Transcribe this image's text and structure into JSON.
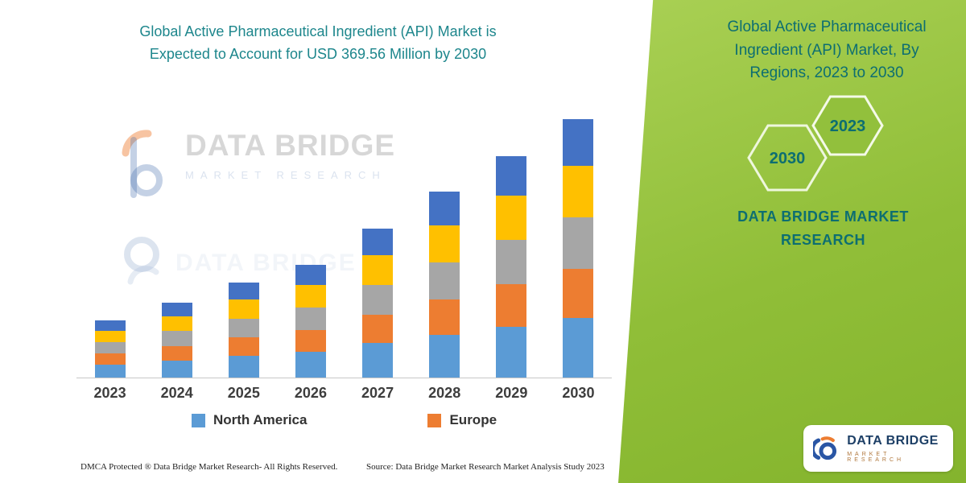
{
  "left_panel": {
    "title_line1": "Global Active Pharmaceutical Ingredient (API) Market is",
    "title_line2": "Expected to Account for USD 369.56 Million by 2030",
    "title_color": "#1d868c",
    "footer_left": "DMCA Protected ® Data Bridge Market Research-  All Rights Reserved.",
    "footer_right": "Source: Data Bridge Market Research  Market Analysis Study 2023"
  },
  "watermark": {
    "line1": "DATA BRIDGE",
    "line2": "MARKET RESEARCH"
  },
  "chart_data": {
    "type": "bar",
    "stacked": true,
    "title": "Global Active Pharmaceutical Ingredient (API) Market, By Regions, 2023 to 2030",
    "unit": "USD Million",
    "annotation": "Total expected to account for USD 369.56 Million by 2030",
    "categories": [
      "2023",
      "2024",
      "2025",
      "2026",
      "2027",
      "2028",
      "2029",
      "2030"
    ],
    "series": [
      {
        "key": "north-america",
        "name": "North America",
        "color": "#5B9BD5",
        "in_legend": true,
        "values": [
          18.9,
          24.6,
          31.3,
          37.0,
          49.0,
          61.2,
          72.9,
          85.0
        ]
      },
      {
        "key": "europe",
        "name": "Europe",
        "color": "#ED7D31",
        "in_legend": true,
        "values": [
          15.6,
          20.3,
          25.8,
          30.6,
          40.5,
          50.5,
          60.2,
          70.2
        ]
      },
      {
        "key": "segment-gray",
        "name": "",
        "color": "#A6A6A6",
        "in_legend": false,
        "values": [
          16.4,
          21.4,
          27.2,
          32.2,
          42.6,
          53.2,
          63.4,
          73.9
        ]
      },
      {
        "key": "segment-yellow",
        "name": "",
        "color": "#FFC000",
        "in_legend": false,
        "values": [
          16.4,
          21.4,
          27.2,
          32.2,
          42.6,
          53.2,
          63.4,
          73.9
        ]
      },
      {
        "key": "segment-dark-blue",
        "name": "",
        "color": "#4472C4",
        "in_legend": false,
        "values": [
          14.7,
          19.3,
          24.5,
          29.0,
          38.3,
          47.9,
          57.1,
          66.6
        ]
      }
    ],
    "totals": [
      82.0,
      107.0,
      136.0,
      161.0,
      213.0,
      266.0,
      317.0,
      369.56
    ],
    "ylim": [
      0,
      380
    ],
    "grid": false,
    "axis_line_color": "#c8c8c8",
    "legend_position": "bottom",
    "legend_visible_entries": [
      "North America",
      "Europe"
    ]
  },
  "right_panel": {
    "background_color": "#90be38",
    "text_color": "#0d6e71",
    "title": "Global Active Pharmaceutical Ingredient (API) Market, By Regions, 2023 to 2030",
    "hexagon_back_year": "2030",
    "hexagon_front_year": "2023",
    "brand_text": "DATA BRIDGE MARKET RESEARCH"
  },
  "logo_badge": {
    "name": "DATA BRIDGE",
    "subtext": "MARKET RESEARCH"
  }
}
